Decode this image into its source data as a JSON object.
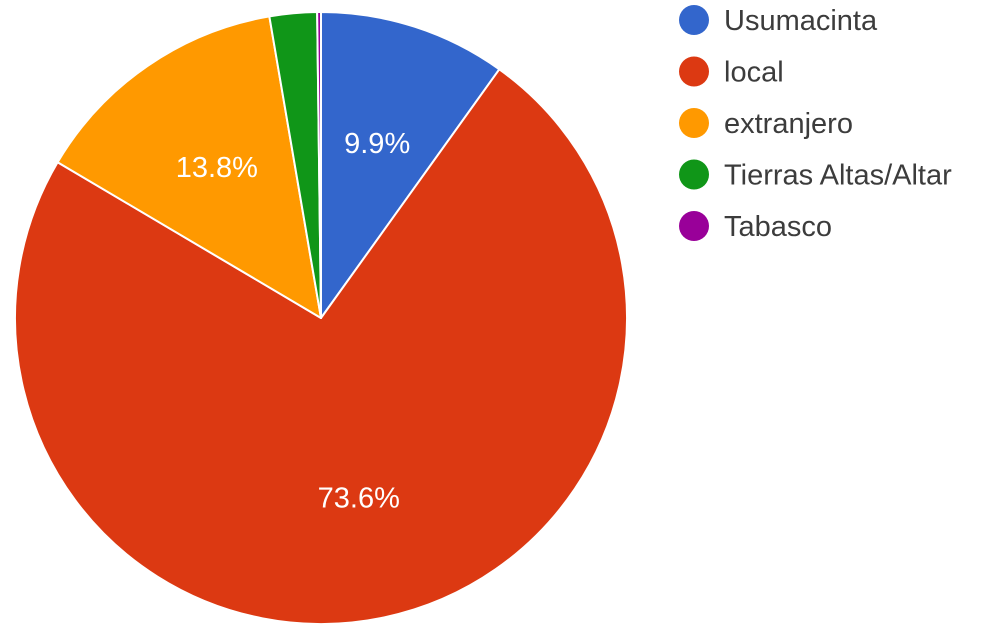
{
  "chart_data": {
    "type": "pie",
    "start_angle_deg": 0,
    "direction": "clockwise",
    "series": [
      {
        "name": "Usumacinta",
        "value": 9.9,
        "label": "9.9%",
        "color": "#3366cc"
      },
      {
        "name": "local",
        "value": 73.6,
        "label": "73.6%",
        "color": "#dc3912"
      },
      {
        "name": "extranjero",
        "value": 13.8,
        "label": "13.8%",
        "color": "#ff9900"
      },
      {
        "name": "Tierras Altas/Altar",
        "value": 2.5,
        "label": "",
        "color": "#109618"
      },
      {
        "name": "Tabasco",
        "value": 0.2,
        "label": "",
        "color": "#990099"
      }
    ],
    "legend_position": "right"
  }
}
